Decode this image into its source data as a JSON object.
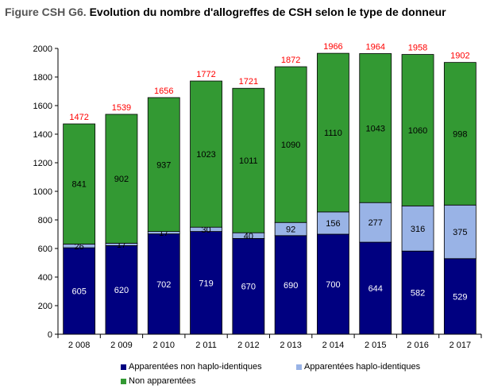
{
  "title": {
    "prefix": "Figure CSH G6.",
    "text": "Evolution du nombre d'allogreffes de CSH selon le type de donneur"
  },
  "chart_data": {
    "type": "bar",
    "stacked": true,
    "categories": [
      "2 008",
      "2 009",
      "2 010",
      "2 011",
      "2 012",
      "2 013",
      "2 014",
      "2 015",
      "2 016",
      "2 017"
    ],
    "series": [
      {
        "name": "Apparentées non haplo-identiques",
        "color": "#000080",
        "label_color": "#ffffff",
        "values": [
          605,
          620,
          702,
          719,
          670,
          690,
          700,
          644,
          582,
          529
        ]
      },
      {
        "name": "Apparentées haplo-identiques",
        "color": "#99b3e6",
        "label_color": "#000000",
        "values": [
          26,
          17,
          17,
          30,
          40,
          92,
          156,
          277,
          316,
          375
        ]
      },
      {
        "name": "Non apparentées",
        "color": "#339933",
        "label_color": "#000000",
        "values": [
          841,
          902,
          937,
          1023,
          1011,
          1090,
          1110,
          1043,
          1060,
          998
        ]
      }
    ],
    "totals": [
      1472,
      1539,
      1656,
      1772,
      1721,
      1872,
      1966,
      1964,
      1958,
      1902
    ],
    "totals_color": "#ff0000",
    "ylim": [
      0,
      2000
    ],
    "yticks": [
      0,
      200,
      400,
      600,
      800,
      1000,
      1200,
      1400,
      1600,
      1800,
      2000
    ],
    "grid": false,
    "legend_position": "bottom"
  }
}
